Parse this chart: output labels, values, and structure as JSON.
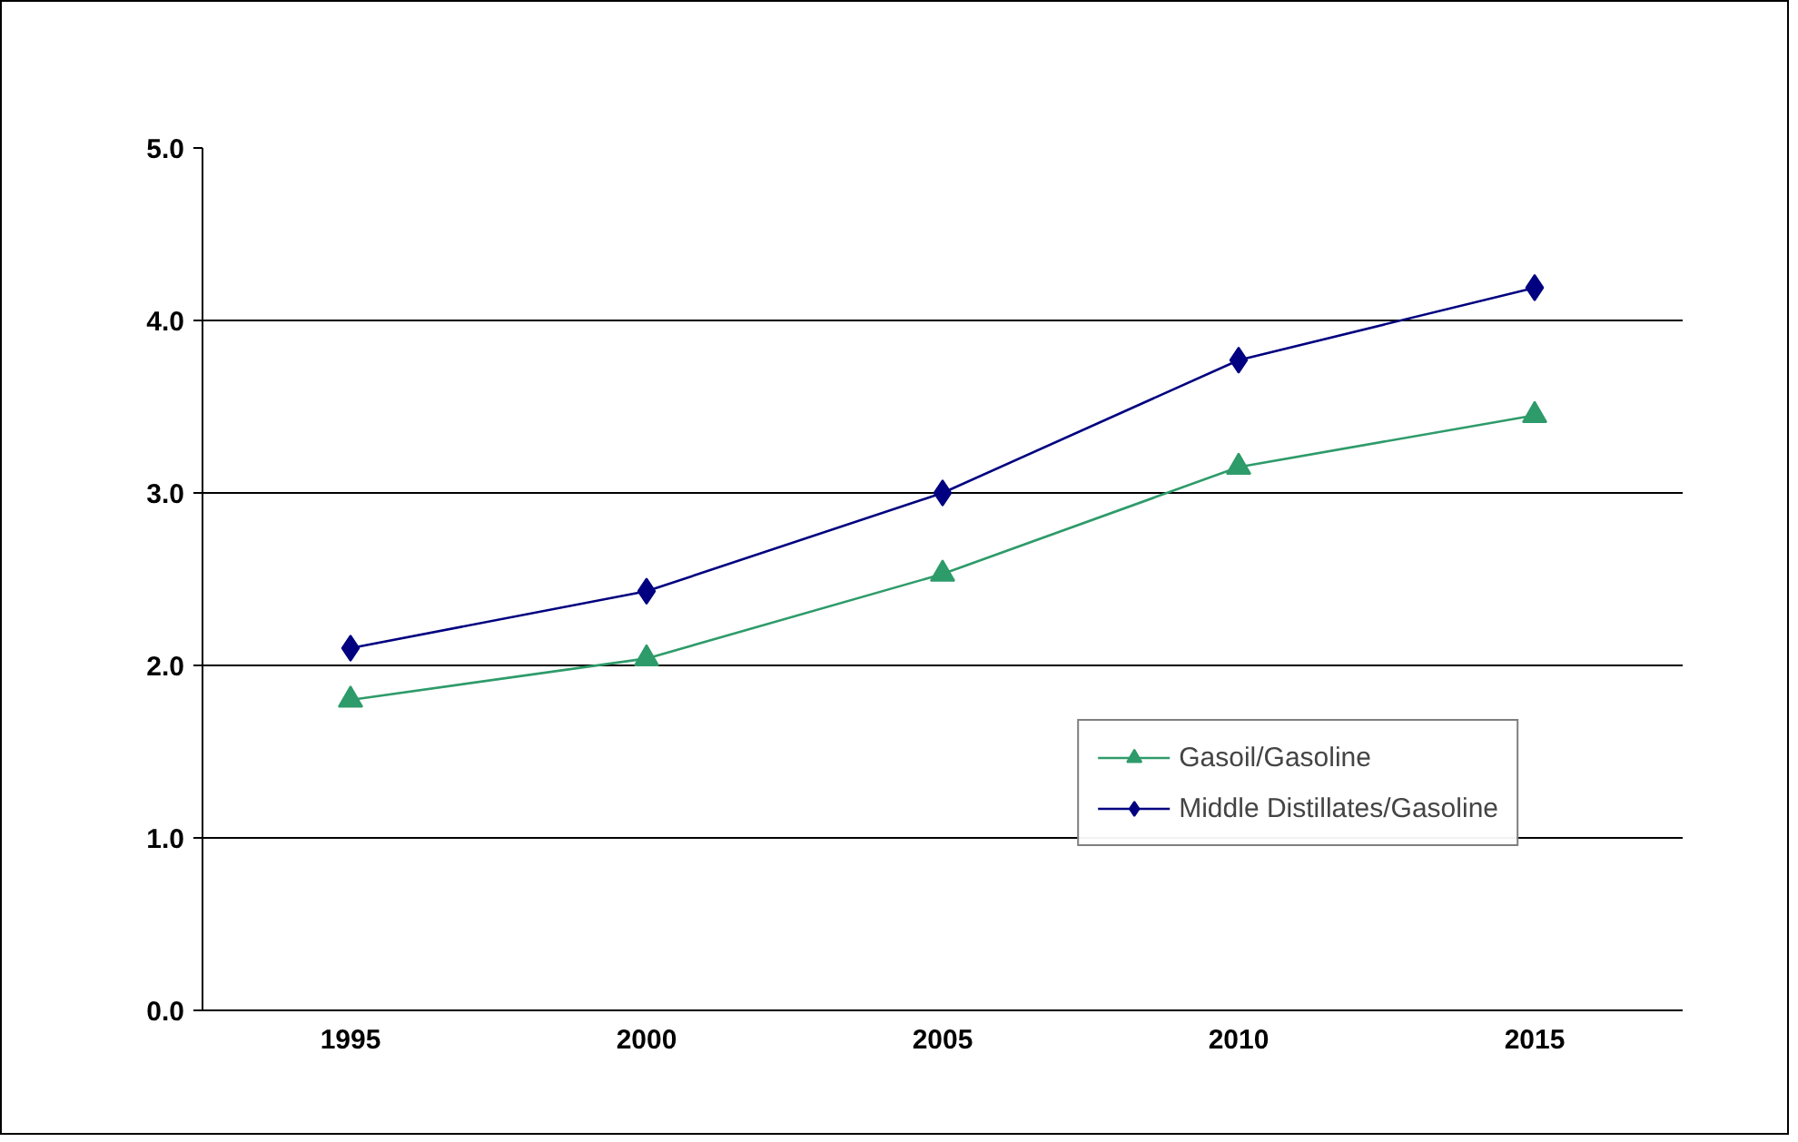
{
  "chart_data": {
    "type": "line",
    "categories": [
      "1995",
      "2000",
      "2005",
      "2010",
      "2015"
    ],
    "series": [
      {
        "name": "Gasoil/Gasoline",
        "color": "#2e9b6a",
        "values": [
          1.8,
          2.04,
          2.53,
          3.15,
          3.45
        ],
        "marker": "triangle"
      },
      {
        "name": "Middle Distillates/Gasoline",
        "color": "#000080",
        "values": [
          2.1,
          2.43,
          3.0,
          3.77,
          4.19
        ],
        "marker": "diamond"
      }
    ],
    "ylim": [
      0,
      5
    ],
    "yticks": [
      {
        "value": 0,
        "label": "0.0"
      },
      {
        "value": 1,
        "label": "1.0"
      },
      {
        "value": 2,
        "label": "2.0"
      },
      {
        "value": 3,
        "label": "3.0"
      },
      {
        "value": 4,
        "label": "4.0"
      },
      {
        "value": 5,
        "label": "5.0"
      }
    ],
    "grid": "y",
    "legend": "bottom right",
    "line_style": "solid"
  }
}
